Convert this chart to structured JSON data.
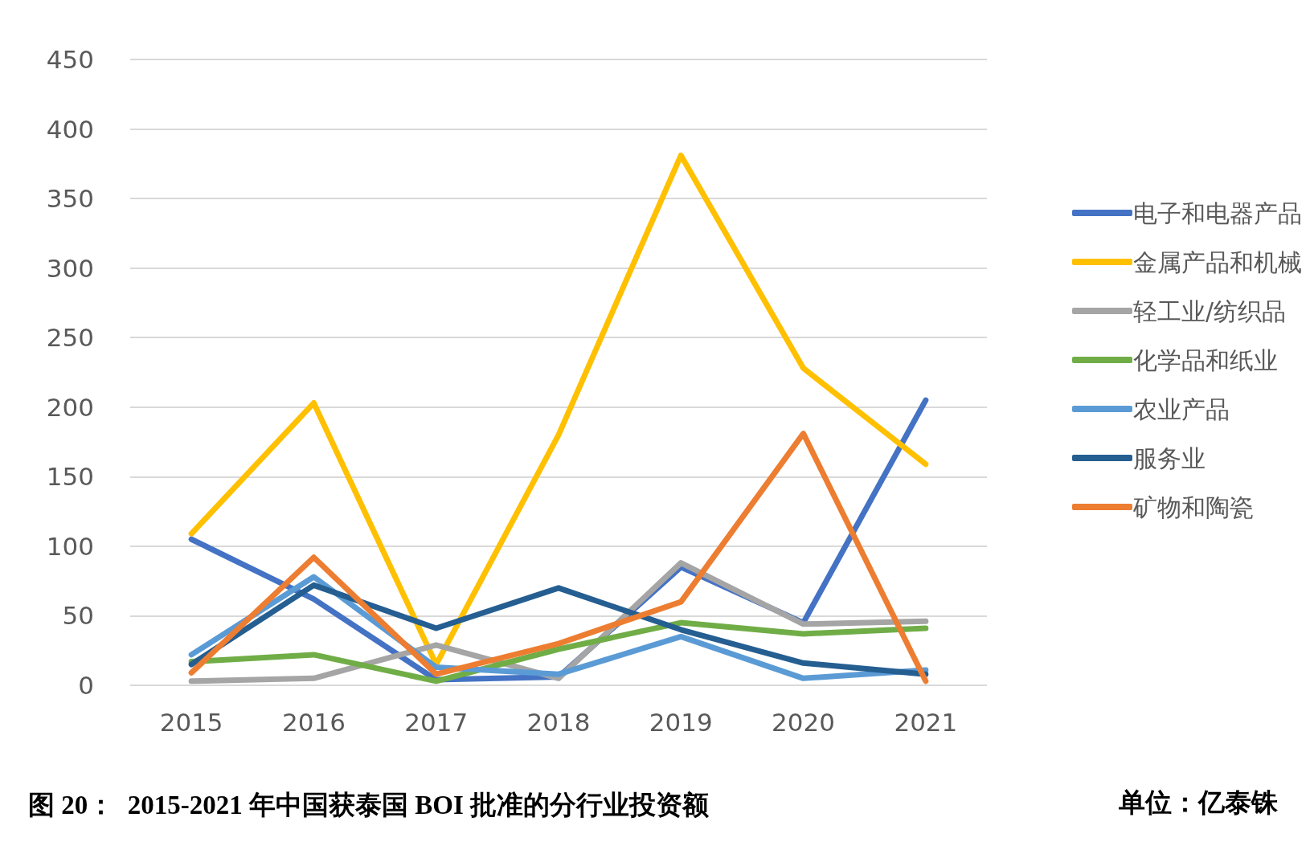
{
  "chart_data": {
    "type": "line",
    "title": "图 20：  2015-2021 年中国获泰国 BOI 批准的分行业投资额",
    "annotations": [
      "单位：亿泰铢"
    ],
    "categories": [
      "2015",
      "2016",
      "2017",
      "2018",
      "2019",
      "2020",
      "2021"
    ],
    "series": [
      {
        "name": "电子和电器产品",
        "color": "#4472c4",
        "values": [
          105,
          62,
          4,
          6,
          85,
          45,
          205
        ]
      },
      {
        "name": "金属产品和机械",
        "color": "#ffc000",
        "values": [
          109,
          203,
          15,
          180,
          381,
          228,
          159
        ]
      },
      {
        "name": "轻工业/纺织品",
        "color": "#a5a5a5",
        "values": [
          3,
          5,
          29,
          5,
          88,
          44,
          46
        ]
      },
      {
        "name": "化学品和纸业",
        "color": "#70ad47",
        "values": [
          17,
          22,
          3,
          26,
          45,
          37,
          41
        ]
      },
      {
        "name": "农业产品",
        "color": "#5b9bd5",
        "values": [
          22,
          78,
          13,
          8,
          35,
          5,
          11
        ]
      },
      {
        "name": "服务业",
        "color": "#255e91",
        "values": [
          15,
          72,
          41,
          70,
          40,
          16,
          8
        ]
      },
      {
        "name": "矿物和陶瓷",
        "color": "#ed7d31",
        "values": [
          9,
          92,
          8,
          30,
          60,
          181,
          3
        ]
      }
    ],
    "ylim": [
      0,
      450
    ],
    "yticks": [
      0,
      50,
      100,
      150,
      200,
      250,
      300,
      350,
      400,
      450
    ],
    "grid": "y",
    "legend": "right",
    "marker": "none",
    "line_style": "solid"
  }
}
